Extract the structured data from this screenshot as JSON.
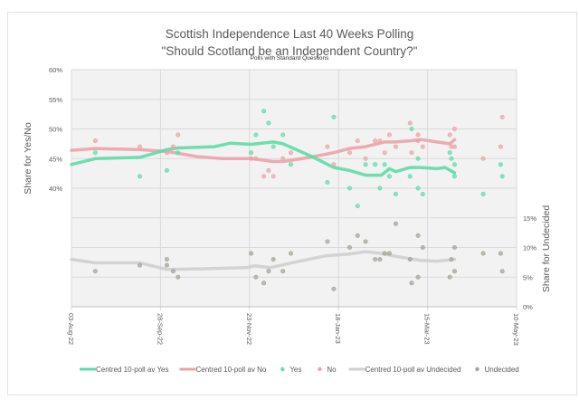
{
  "chart_data": {
    "type": "scatter",
    "title": "Scottish Independence Last 40 Weeks Polling",
    "title2": "\"Should Scotland be an Independent Country?\"",
    "subtitle": "Polls with Standard Questions",
    "ylabel": "Share for Yes/No",
    "y2label": "Share for Undecided",
    "ylim": [
      20,
      60
    ],
    "y2lim": [
      0,
      40
    ],
    "yticks": [
      "40%",
      "45%",
      "50%",
      "55%",
      "60%"
    ],
    "y2ticks": [
      "0%",
      "5%",
      "10%",
      "15%"
    ],
    "x_unit": "days since 03-Aug-22",
    "xlim": [
      0,
      280
    ],
    "xticks": [
      "03-Aug-22",
      "28-Sep-22",
      "23-Nov-22",
      "18-Jan-23",
      "15-Mar-23",
      "10-May-23"
    ],
    "legend_position": "bottom",
    "colors": {
      "yes": "#5fdca8",
      "no": "#eba3a8",
      "und_line": "#cfcfcf",
      "und_point": "#a3a397",
      "plot_bg": "#f2f2f2",
      "grid": "#d9d9d9"
    },
    "series": [
      {
        "name": "Centred 10-poll av Yes",
        "kind": "line",
        "key": "yes",
        "axis": "left",
        "points": [
          [
            0,
            44
          ],
          [
            15,
            45
          ],
          [
            43,
            45.2
          ],
          [
            60,
            46.5
          ],
          [
            67,
            46.8
          ],
          [
            90,
            47
          ],
          [
            100,
            47.6
          ],
          [
            113,
            47.4
          ],
          [
            127,
            47.8
          ],
          [
            133,
            47.5
          ],
          [
            150,
            45.5
          ],
          [
            165,
            43.5
          ],
          [
            175,
            43
          ],
          [
            185,
            42.2
          ],
          [
            195,
            42.2
          ],
          [
            200,
            43.3
          ],
          [
            204,
            42.8
          ],
          [
            213,
            43.5
          ],
          [
            220,
            43.5
          ],
          [
            230,
            43.3
          ],
          [
            235,
            43.5
          ],
          [
            241,
            42.6
          ]
        ]
      },
      {
        "name": "Centred 10-poll av No",
        "kind": "line",
        "key": "no",
        "axis": "left",
        "points": [
          [
            0,
            46.4
          ],
          [
            15,
            46.7
          ],
          [
            43,
            46.5
          ],
          [
            60,
            46.2
          ],
          [
            80,
            45.3
          ],
          [
            95,
            45
          ],
          [
            113,
            45
          ],
          [
            127,
            44.5
          ],
          [
            133,
            44.5
          ],
          [
            150,
            45.2
          ],
          [
            165,
            46
          ],
          [
            175,
            46.7
          ],
          [
            185,
            47
          ],
          [
            197,
            47.8
          ],
          [
            204,
            47.8
          ],
          [
            213,
            48
          ],
          [
            220,
            48.2
          ],
          [
            230,
            47.8
          ],
          [
            238,
            47.5
          ],
          [
            241,
            48.2
          ]
        ]
      },
      {
        "name": "Yes",
        "kind": "points",
        "key": "yes",
        "axis": "left",
        "points": [
          [
            15,
            46
          ],
          [
            43,
            42
          ],
          [
            60,
            43
          ],
          [
            67,
            46
          ],
          [
            113,
            46
          ],
          [
            116,
            49
          ],
          [
            121,
            53
          ],
          [
            124,
            51
          ],
          [
            127,
            47
          ],
          [
            133,
            49
          ],
          [
            138,
            44
          ],
          [
            161,
            41
          ],
          [
            165,
            52
          ],
          [
            175,
            40
          ],
          [
            180,
            37
          ],
          [
            185,
            44
          ],
          [
            191,
            44
          ],
          [
            194,
            40
          ],
          [
            197,
            44
          ],
          [
            200,
            42
          ],
          [
            204,
            39
          ],
          [
            213,
            42
          ],
          [
            214,
            50
          ],
          [
            218,
            45
          ],
          [
            218,
            40
          ],
          [
            221,
            39
          ],
          [
            238,
            46
          ],
          [
            239,
            45
          ],
          [
            241,
            44
          ],
          [
            241,
            42
          ],
          [
            259,
            39
          ],
          [
            270,
            44
          ],
          [
            271,
            42
          ]
        ]
      },
      {
        "name": "No",
        "kind": "points",
        "key": "no",
        "axis": "left",
        "points": [
          [
            15,
            48
          ],
          [
            43,
            47
          ],
          [
            60,
            46
          ],
          [
            64,
            47
          ],
          [
            67,
            49
          ],
          [
            113,
            45
          ],
          [
            116,
            45
          ],
          [
            121,
            42
          ],
          [
            124,
            43
          ],
          [
            127,
            42
          ],
          [
            133,
            45
          ],
          [
            138,
            46
          ],
          [
            161,
            47
          ],
          [
            165,
            44
          ],
          [
            175,
            46
          ],
          [
            180,
            48
          ],
          [
            185,
            45
          ],
          [
            191,
            48
          ],
          [
            194,
            48
          ],
          [
            197,
            46
          ],
          [
            200,
            49
          ],
          [
            204,
            47
          ],
          [
            213,
            51
          ],
          [
            214,
            46
          ],
          [
            218,
            49
          ],
          [
            218,
            48
          ],
          [
            221,
            47
          ],
          [
            238,
            49
          ],
          [
            239,
            47
          ],
          [
            241,
            47
          ],
          [
            241,
            50
          ],
          [
            259,
            45
          ],
          [
            270,
            47
          ],
          [
            271,
            52
          ]
        ]
      },
      {
        "name": "Centred 10-poll av Undecided",
        "kind": "line",
        "key": "und_line",
        "axis": "right",
        "points": [
          [
            0,
            8
          ],
          [
            15,
            7.4
          ],
          [
            43,
            7.4
          ],
          [
            60,
            6.3
          ],
          [
            80,
            6.4
          ],
          [
            110,
            6.6
          ],
          [
            115,
            6.9
          ],
          [
            125,
            6.6
          ],
          [
            140,
            7.5
          ],
          [
            160,
            8.6
          ],
          [
            175,
            8.9
          ],
          [
            185,
            9.3
          ],
          [
            195,
            9
          ],
          [
            204,
            8.5
          ],
          [
            213,
            8.1
          ],
          [
            220,
            7.8
          ],
          [
            230,
            7.7
          ],
          [
            241,
            8
          ]
        ]
      },
      {
        "name": "Undecided",
        "kind": "points",
        "key": "und_point",
        "axis": "right",
        "points": [
          [
            15,
            6
          ],
          [
            43,
            7
          ],
          [
            60,
            8
          ],
          [
            60,
            7
          ],
          [
            64,
            6
          ],
          [
            67,
            5
          ],
          [
            113,
            9
          ],
          [
            116,
            5
          ],
          [
            121,
            4
          ],
          [
            124,
            6
          ],
          [
            127,
            8
          ],
          [
            133,
            6
          ],
          [
            138,
            9
          ],
          [
            161,
            11
          ],
          [
            165,
            3
          ],
          [
            175,
            10
          ],
          [
            180,
            12
          ],
          [
            185,
            11
          ],
          [
            191,
            8
          ],
          [
            194,
            8
          ],
          [
            197,
            9
          ],
          [
            200,
            9
          ],
          [
            204,
            14
          ],
          [
            213,
            8
          ],
          [
            214,
            4
          ],
          [
            218,
            12
          ],
          [
            218,
            5
          ],
          [
            221,
            10
          ],
          [
            238,
            5
          ],
          [
            239,
            8
          ],
          [
            241,
            6
          ],
          [
            241,
            10
          ],
          [
            259,
            9
          ],
          [
            270,
            9
          ],
          [
            271,
            6
          ]
        ]
      }
    ]
  }
}
